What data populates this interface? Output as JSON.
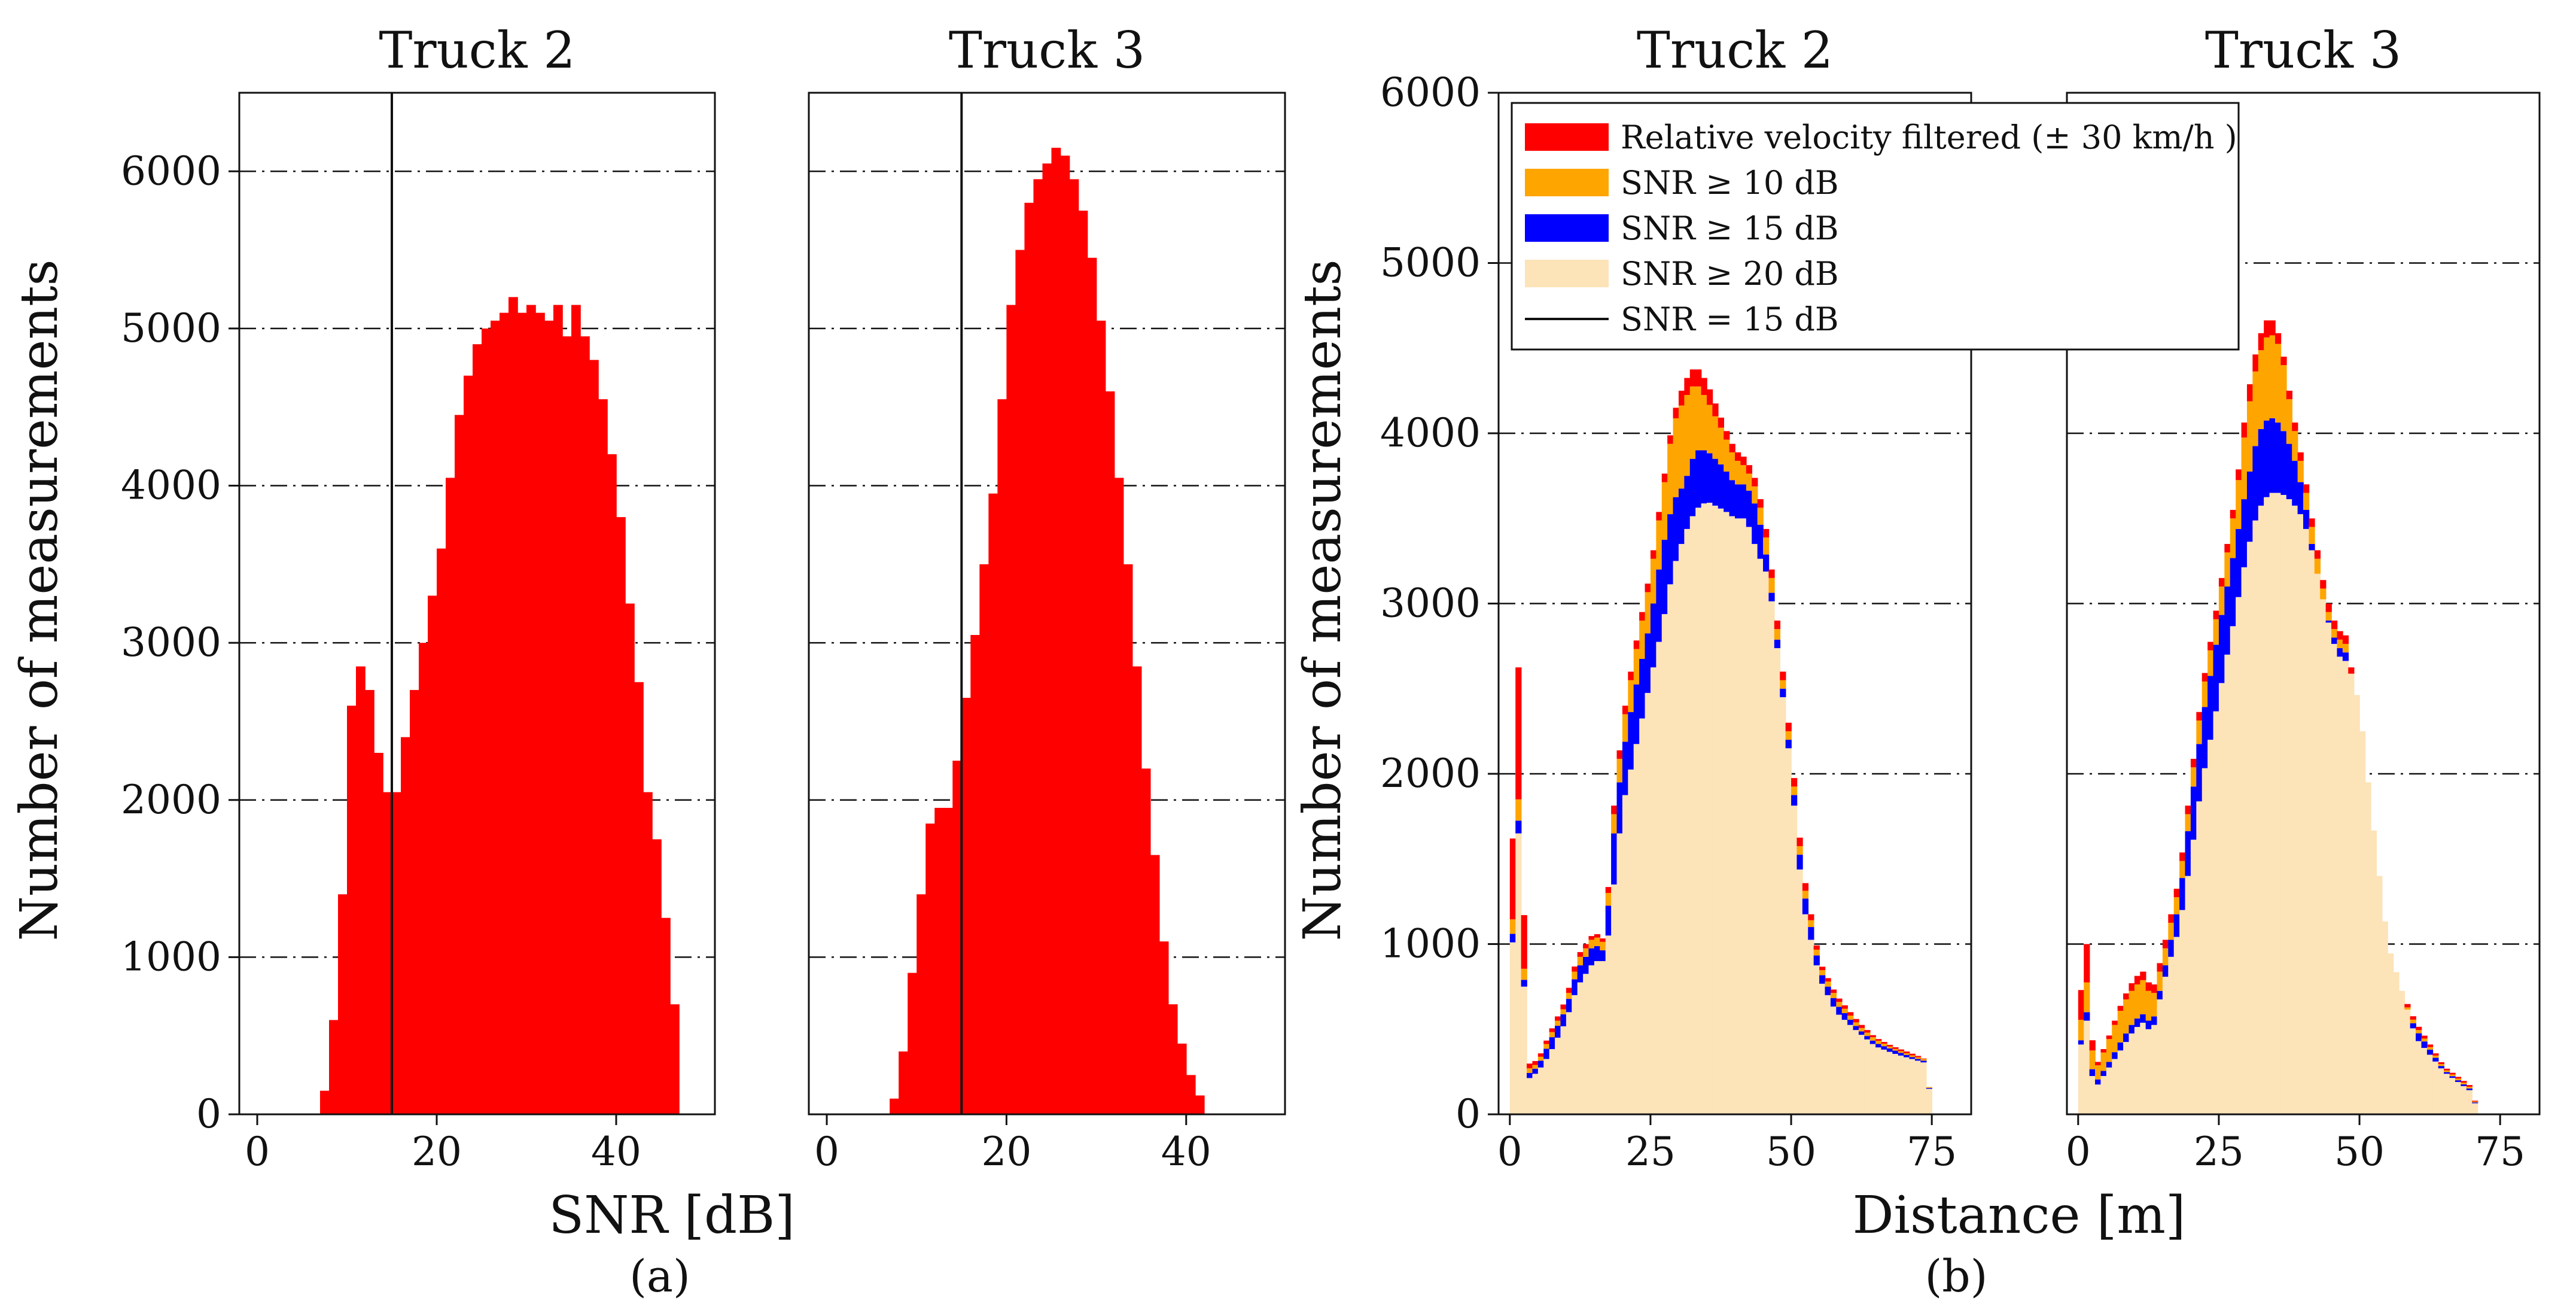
{
  "figure": {
    "panel_a_label": "(a)",
    "panel_b_label": "(b)",
    "colors": {
      "filtered": "#ff0000",
      "snr10": "#ffa500",
      "snr15": "#0000ff",
      "snr20": "#fde3b8",
      "line": "#111111"
    }
  },
  "chart_data": [
    {
      "panel": "a",
      "type": "bar",
      "title": "Truck 2",
      "xlabel": "SNR [dB]",
      "ylabel": "Number of measurements",
      "xlim": [
        -2,
        51
      ],
      "ylim": [
        0,
        6500
      ],
      "xticks": [
        0,
        20,
        40
      ],
      "yticks": [
        0,
        1000,
        2000,
        3000,
        4000,
        5000,
        6000
      ],
      "grid": "y",
      "vline": 15,
      "bin_start": 7,
      "bin_width": 1,
      "values": [
        150,
        600,
        1400,
        2600,
        2850,
        2700,
        2300,
        2050,
        2050,
        2400,
        2700,
        3000,
        3300,
        3600,
        4050,
        4450,
        4700,
        4900,
        5000,
        5050,
        5100,
        5200,
        5100,
        5150,
        5100,
        5050,
        5150,
        4950,
        5150,
        4950,
        4800,
        4550,
        4200,
        3800,
        3250,
        2750,
        2050,
        1750,
        1250,
        700
      ]
    },
    {
      "panel": "a",
      "type": "bar",
      "title": "Truck 3",
      "xlabel": "SNR [dB]",
      "ylabel": "",
      "xlim": [
        -2,
        51
      ],
      "ylim": [
        0,
        6500
      ],
      "xticks": [
        0,
        20,
        40
      ],
      "yticks": [
        0,
        1000,
        2000,
        3000,
        4000,
        5000,
        6000
      ],
      "grid": "y",
      "vline": 15,
      "bin_start": 7,
      "bin_width": 1,
      "values": [
        100,
        400,
        900,
        1400,
        1850,
        1950,
        1950,
        2250,
        2650,
        3050,
        3500,
        3950,
        4550,
        5150,
        5500,
        5800,
        5950,
        6050,
        6150,
        6100,
        5950,
        5750,
        5450,
        5050,
        4600,
        4050,
        3500,
        2850,
        2200,
        1650,
        1100,
        700,
        450,
        250,
        120
      ]
    },
    {
      "panel": "b",
      "type": "bar",
      "title": "Truck 2",
      "xlabel": "Distance [m]",
      "ylabel": "Number of measurements",
      "xlim": [
        -2,
        82
      ],
      "ylim": [
        0,
        6000
      ],
      "xticks": [
        0,
        25,
        50,
        75
      ],
      "yticks": [
        0,
        1000,
        2000,
        3000,
        4000,
        5000,
        6000
      ],
      "grid": "y",
      "stacked": true,
      "bin_start": 0,
      "bin_width": 1,
      "anchor_x": [
        0,
        1,
        2,
        3,
        5,
        7,
        10,
        12,
        15,
        17,
        18,
        20,
        22,
        25,
        27,
        29,
        31,
        33,
        35,
        38,
        40,
        42,
        44,
        46,
        48,
        50,
        52,
        55,
        58,
        62,
        65,
        68,
        72,
        74,
        75
      ],
      "series": [
        {
          "name": "SNR ≥ 20 dB",
          "anchor_values": [
            20,
            2000,
            1300,
            200,
            250,
            350,
            550,
            750,
            900,
            900,
            1200,
            1800,
            2100,
            2550,
            2850,
            3200,
            3400,
            3550,
            3600,
            3550,
            3500,
            3500,
            3300,
            3150,
            2600,
            2000,
            1250,
            800,
            600,
            480,
            400,
            360,
            320,
            300,
            0
          ]
        },
        {
          "name": "SNR ≥ 15 dB",
          "anchor_values": [
            20,
            2100,
            1350,
            230,
            280,
            420,
            620,
            850,
            1000,
            950,
            1500,
            2100,
            2450,
            2900,
            3300,
            3600,
            3700,
            3900,
            3900,
            3800,
            3700,
            3700,
            3550,
            3200,
            2650,
            2050,
            1350,
            850,
            650,
            500,
            420,
            380,
            330,
            310,
            0
          ]
        },
        {
          "name": "SNR ≥ 10 dB",
          "anchor_values": [
            40,
            2250,
            1450,
            260,
            300,
            450,
            650,
            900,
            1050,
            1000,
            1600,
            2250,
            2650,
            3150,
            3600,
            4050,
            4200,
            4300,
            4200,
            4000,
            3850,
            3800,
            3650,
            3300,
            2700,
            2100,
            1400,
            880,
            680,
            520,
            440,
            390,
            340,
            320,
            0
          ]
        },
        {
          "name": "Relative velocity filtered (± 30 km/h )",
          "anchor_values": [
            40,
            3200,
            2050,
            290,
            320,
            470,
            680,
            930,
            1070,
            1020,
            1650,
            2300,
            2700,
            3200,
            3650,
            4100,
            4300,
            4400,
            4300,
            4050,
            3900,
            3850,
            3700,
            3350,
            2750,
            2150,
            1450,
            900,
            700,
            540,
            450,
            400,
            350,
            320,
            0
          ]
        }
      ]
    },
    {
      "panel": "b",
      "type": "bar",
      "title": "Truck 3",
      "xlabel": "Distance [m]",
      "ylabel": "",
      "xlim": [
        -2,
        82
      ],
      "ylim": [
        0,
        6000
      ],
      "xticks": [
        0,
        25,
        50,
        75
      ],
      "yticks": [
        0,
        1000,
        2000,
        3000,
        4000,
        5000,
        6000
      ],
      "grid": "y",
      "stacked": true,
      "bin_start": 0,
      "bin_width": 1,
      "anchor_x": [
        0,
        1,
        2,
        3,
        5,
        8,
        10,
        12,
        13,
        15,
        18,
        20,
        22,
        25,
        28,
        30,
        32,
        34,
        36,
        38,
        40,
        42,
        44,
        46,
        48,
        50,
        52,
        55,
        60,
        65,
        70,
        71
      ],
      "series": [
        {
          "name": "SNR ≥ 20 dB",
          "anchor_values": [
            20,
            800,
            300,
            150,
            250,
            400,
            500,
            550,
            450,
            750,
            1100,
            1500,
            1950,
            2450,
            2950,
            3300,
            3550,
            3650,
            3650,
            3600,
            3500,
            3250,
            2950,
            2700,
            2650,
            2400,
            1800,
            1000,
            450,
            250,
            130,
            0
          ]
        },
        {
          "name": "SNR ≥ 15 dB",
          "anchor_values": [
            20,
            850,
            350,
            180,
            280,
            450,
            550,
            600,
            500,
            800,
            1250,
            1800,
            2300,
            2850,
            3350,
            3700,
            4000,
            4100,
            4050,
            3900,
            3650,
            3250,
            2950,
            2750,
            2700,
            2000,
            1250,
            850,
            500,
            260,
            140,
            0
          ]
        },
        {
          "name": "SNR ≥ 10 dB",
          "anchor_values": [
            60,
            1050,
            500,
            250,
            400,
            650,
            750,
            800,
            650,
            900,
            1350,
            1900,
            2450,
            3000,
            3600,
            4100,
            4450,
            4600,
            4500,
            4100,
            3750,
            3350,
            3000,
            2800,
            2750,
            2050,
            1300,
            880,
            520,
            270,
            150,
            0
          ]
        },
        {
          "name": "Relative velocity filtered (± 30 km/h )",
          "anchor_values": [
            60,
            1400,
            600,
            270,
            420,
            680,
            800,
            850,
            700,
            950,
            1400,
            1950,
            2500,
            3050,
            3650,
            4200,
            4550,
            4700,
            4550,
            4150,
            3800,
            3400,
            3050,
            2850,
            2800,
            2100,
            1350,
            900,
            540,
            280,
            160,
            0
          ]
        }
      ]
    }
  ],
  "legend": {
    "items": [
      {
        "label": "Relative velocity filtered (± 30 km/h )",
        "color": "#ff0000",
        "kind": "patch"
      },
      {
        "label": "SNR ≥ 10 dB",
        "color": "#ffa500",
        "kind": "patch"
      },
      {
        "label": "SNR ≥ 15 dB",
        "color": "#0000ff",
        "kind": "patch"
      },
      {
        "label": "SNR ≥ 20 dB",
        "color": "#fde3b8",
        "kind": "patch"
      },
      {
        "label": "SNR = 15 dB",
        "color": "#111111",
        "kind": "line"
      }
    ]
  }
}
